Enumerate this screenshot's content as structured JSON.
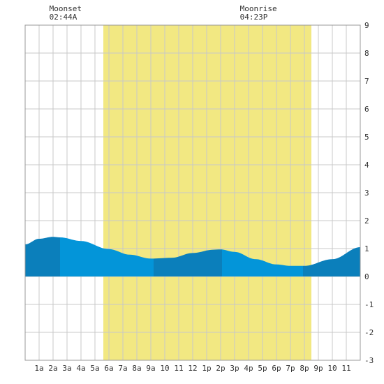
{
  "chart_data": {
    "type": "area",
    "title": "",
    "xlabel": "",
    "ylabel": "",
    "xlim": [
      0,
      24
    ],
    "ylim": [
      -3,
      9
    ],
    "grid": true,
    "x_tick_labels": [
      "1a",
      "2a",
      "3a",
      "4a",
      "5a",
      "6a",
      "7a",
      "8a",
      "9a",
      "10",
      "11",
      "12",
      "1p",
      "2p",
      "3p",
      "4p",
      "5p",
      "6p",
      "7p",
      "8p",
      "9p",
      "10",
      "11"
    ],
    "y_tick_values": [
      9,
      8,
      7,
      6,
      5,
      4,
      3,
      2,
      1,
      0,
      -1,
      -2,
      -3
    ],
    "daylight": {
      "start": 5.6,
      "end": 20.5,
      "color": "#f2e882"
    },
    "series": [
      {
        "x": [
          0,
          1,
          2,
          2.5,
          4,
          6,
          7.5,
          9,
          10.5,
          12,
          13.5,
          14,
          15,
          16.5,
          18,
          19,
          20,
          22,
          24
        ],
        "values": [
          1.15,
          1.35,
          1.42,
          1.4,
          1.27,
          0.98,
          0.78,
          0.64,
          0.67,
          0.84,
          0.96,
          0.97,
          0.88,
          0.62,
          0.43,
          0.38,
          0.38,
          0.62,
          1.05
        ]
      }
    ],
    "shading_bands": [
      {
        "from": 0,
        "to": 2.5,
        "color": "#0b7fbb"
      },
      {
        "from": 2.5,
        "to": 9.2,
        "color": "#0395d9"
      },
      {
        "from": 9.2,
        "to": 14.1,
        "color": "#0b7fbb"
      },
      {
        "from": 14.1,
        "to": 19.9,
        "color": "#0395d9"
      },
      {
        "from": 19.9,
        "to": 24,
        "color": "#0b7fbb"
      }
    ],
    "annotations": [
      {
        "label": "Moonset",
        "time": "02:44A",
        "x": 2.73
      },
      {
        "label": "Moonrise",
        "time": "04:23P",
        "x": 16.38
      }
    ],
    "colors": {
      "grid": "#c8c8c8",
      "border": "#999999",
      "text": "#333333"
    }
  }
}
